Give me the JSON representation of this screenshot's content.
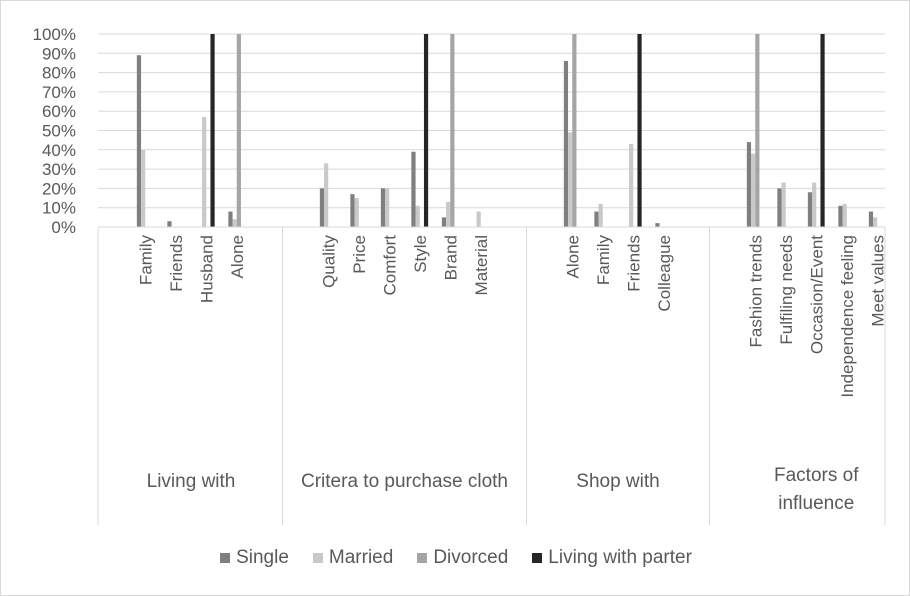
{
  "chart_data": {
    "type": "bar",
    "title": "",
    "xlabel": "",
    "ylabel": "",
    "ylim": [
      0,
      100
    ],
    "y_ticks": [
      "0%",
      "10%",
      "20%",
      "30%",
      "40%",
      "50%",
      "60%",
      "70%",
      "80%",
      "90%",
      "100%"
    ],
    "grid": true,
    "legend_position": "bottom",
    "colors": {
      "Single": "#7f7f7f",
      "Married": "#c9c9c9",
      "Divorced": "#a5a5a5",
      "Living with parter": "#262626"
    },
    "groups": [
      {
        "label": "Living with",
        "categories": [
          "Family",
          "Friends",
          "Husband",
          "Alone"
        ],
        "series": {
          "Single": [
            89,
            3,
            0,
            8
          ],
          "Married": [
            40,
            0,
            57,
            4
          ],
          "Divorced": [
            0,
            0,
            0,
            100
          ],
          "Living with parter": [
            0,
            0,
            100,
            0
          ]
        }
      },
      {
        "label": "Critera to purchase cloth",
        "categories": [
          "Quality",
          "Price",
          "Comfort",
          "Style",
          "Brand",
          "Material"
        ],
        "series": {
          "Single": [
            20,
            17,
            20,
            39,
            5,
            0
          ],
          "Married": [
            33,
            15,
            20,
            11,
            13,
            8
          ],
          "Divorced": [
            0,
            0,
            0,
            0,
            100,
            0
          ],
          "Living with parter": [
            0,
            0,
            0,
            100,
            0,
            0
          ]
        }
      },
      {
        "label": "Shop with",
        "categories": [
          "Alone",
          "Family",
          "Friends",
          "Colleague"
        ],
        "series": {
          "Single": [
            86,
            8,
            0,
            2
          ],
          "Married": [
            49,
            12,
            43,
            0
          ],
          "Divorced": [
            100,
            0,
            0,
            0
          ],
          "Living with parter": [
            0,
            0,
            100,
            0
          ]
        }
      },
      {
        "label": "Factors of influence",
        "categories": [
          "Fashion trends",
          "Fulfiling needs",
          "Occasion/Event",
          "Independence feeling",
          "Meet values"
        ],
        "series": {
          "Single": [
            44,
            20,
            18,
            11,
            8
          ],
          "Married": [
            38,
            23,
            23,
            12,
            5
          ],
          "Divorced": [
            100,
            0,
            0,
            0,
            0
          ],
          "Living with parter": [
            0,
            0,
            100,
            0,
            0
          ]
        }
      }
    ],
    "series_names": [
      "Single",
      "Married",
      "Divorced",
      "Living with parter"
    ]
  }
}
